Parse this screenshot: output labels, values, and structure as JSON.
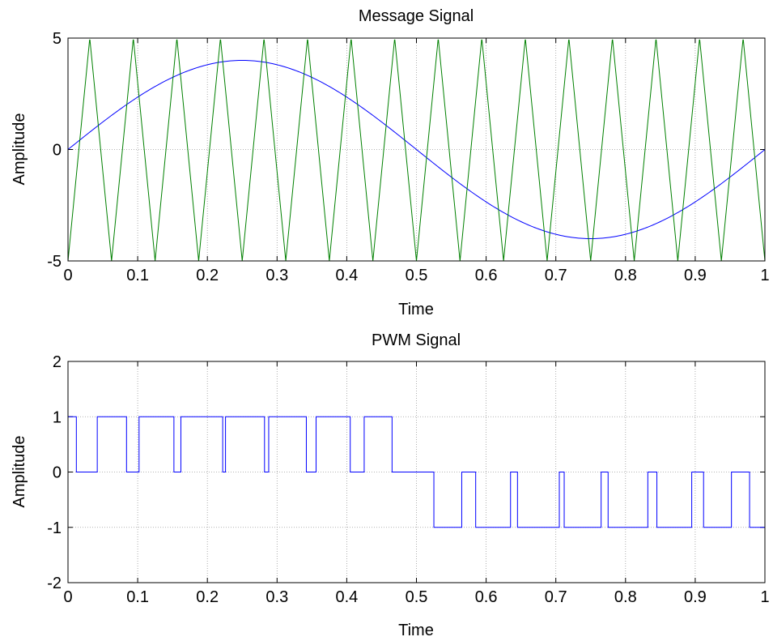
{
  "chart_data": [
    {
      "type": "line",
      "title": "Message Signal",
      "xlabel": "Time",
      "ylabel": "Amplitude",
      "xlim": [
        0,
        1
      ],
      "ylim": [
        -5,
        5
      ],
      "xticks": [
        0,
        0.1,
        0.2,
        0.3,
        0.4,
        0.5,
        0.6,
        0.7,
        0.8,
        0.9,
        1
      ],
      "xtick_labels": [
        "0",
        "0.1",
        "0.2",
        "0.3",
        "0.4",
        "0.5",
        "0.6",
        "0.7",
        "0.8",
        "0.9",
        "1"
      ],
      "yticks": [
        -5,
        0,
        5
      ],
      "ytick_labels": [
        "-5",
        "0",
        "5"
      ],
      "grid": true,
      "series": [
        {
          "color": "#0000ff",
          "kind": "sine",
          "amplitude": 4,
          "frequency": 1,
          "x": [
            0,
            0.05,
            0.1,
            0.15,
            0.2,
            0.25,
            0.3,
            0.35,
            0.4,
            0.45,
            0.5,
            0.55,
            0.6,
            0.65,
            0.7,
            0.75,
            0.8,
            0.85,
            0.9,
            0.95,
            1
          ],
          "values": [
            0,
            1.24,
            2.35,
            3.24,
            3.8,
            4.0,
            3.8,
            3.24,
            2.35,
            1.24,
            0,
            -1.24,
            -2.35,
            -3.24,
            -3.8,
            -4.0,
            -3.8,
            -3.24,
            -2.35,
            -1.24,
            0
          ]
        },
        {
          "color": "#008000",
          "kind": "triangle",
          "amplitude": 5,
          "period": 0.0625,
          "x": [
            0,
            0.03125,
            0.0625,
            0.09375,
            0.125,
            0.15625,
            0.1875,
            0.21875,
            0.25,
            0.28125,
            0.3125,
            0.34375,
            0.375,
            0.40625,
            0.4375,
            0.46875,
            0.5,
            0.53125,
            0.5625,
            0.59375,
            0.625,
            0.65625,
            0.6875,
            0.71875,
            0.75,
            0.78125,
            0.8125,
            0.84375,
            0.875,
            0.90625,
            0.9375,
            0.96875,
            1
          ],
          "values": [
            -5,
            5,
            -5,
            5,
            -5,
            5,
            -5,
            5,
            -5,
            5,
            -5,
            5,
            -5,
            5,
            -5,
            5,
            -5,
            5,
            -5,
            5,
            -5,
            5,
            -5,
            5,
            -5,
            5,
            -5,
            5,
            -5,
            5,
            -5,
            5,
            -5
          ]
        }
      ]
    },
    {
      "type": "line",
      "title": "PWM Signal",
      "xlabel": "Time",
      "ylabel": "Amplitude",
      "xlim": [
        0,
        1
      ],
      "ylim": [
        -2,
        2
      ],
      "xticks": [
        0,
        0.1,
        0.2,
        0.3,
        0.4,
        0.5,
        0.6,
        0.7,
        0.8,
        0.9,
        1
      ],
      "xtick_labels": [
        "0",
        "0.1",
        "0.2",
        "0.3",
        "0.4",
        "0.5",
        "0.6",
        "0.7",
        "0.8",
        "0.9",
        "1"
      ],
      "yticks": [
        -2,
        -1,
        0,
        1,
        2
      ],
      "ytick_labels": [
        "-2",
        "-1",
        "0",
        "1",
        "2"
      ],
      "grid": true,
      "series": [
        {
          "color": "#0000ff",
          "kind": "step",
          "x": [
            0,
            0.012,
            0.012,
            0.042,
            0.042,
            0.084,
            0.084,
            0.102,
            0.102,
            0.152,
            0.152,
            0.162,
            0.162,
            0.222,
            0.222,
            0.226,
            0.226,
            0.282,
            0.282,
            0.288,
            0.288,
            0.342,
            0.342,
            0.356,
            0.356,
            0.405,
            0.405,
            0.425,
            0.425,
            0.465,
            0.465,
            0.525,
            0.525,
            0.565,
            0.565,
            0.585,
            0.585,
            0.635,
            0.635,
            0.645,
            0.645,
            0.705,
            0.705,
            0.712,
            0.712,
            0.765,
            0.765,
            0.775,
            0.775,
            0.832,
            0.832,
            0.845,
            0.845,
            0.895,
            0.895,
            0.912,
            0.912,
            0.952,
            0.952,
            0.978,
            0.978,
            1
          ],
          "values": [
            1,
            1,
            0,
            0,
            1,
            1,
            0,
            0,
            1,
            1,
            0,
            0,
            1,
            1,
            0,
            0,
            1,
            1,
            0,
            0,
            1,
            1,
            0,
            0,
            1,
            1,
            0,
            0,
            1,
            1,
            0,
            0,
            -1,
            -1,
            0,
            0,
            -1,
            -1,
            0,
            0,
            -1,
            -1,
            0,
            0,
            -1,
            -1,
            0,
            0,
            -1,
            -1,
            0,
            0,
            -1,
            -1,
            0,
            0,
            -1,
            -1,
            0,
            0,
            -1,
            -1
          ]
        }
      ]
    }
  ]
}
